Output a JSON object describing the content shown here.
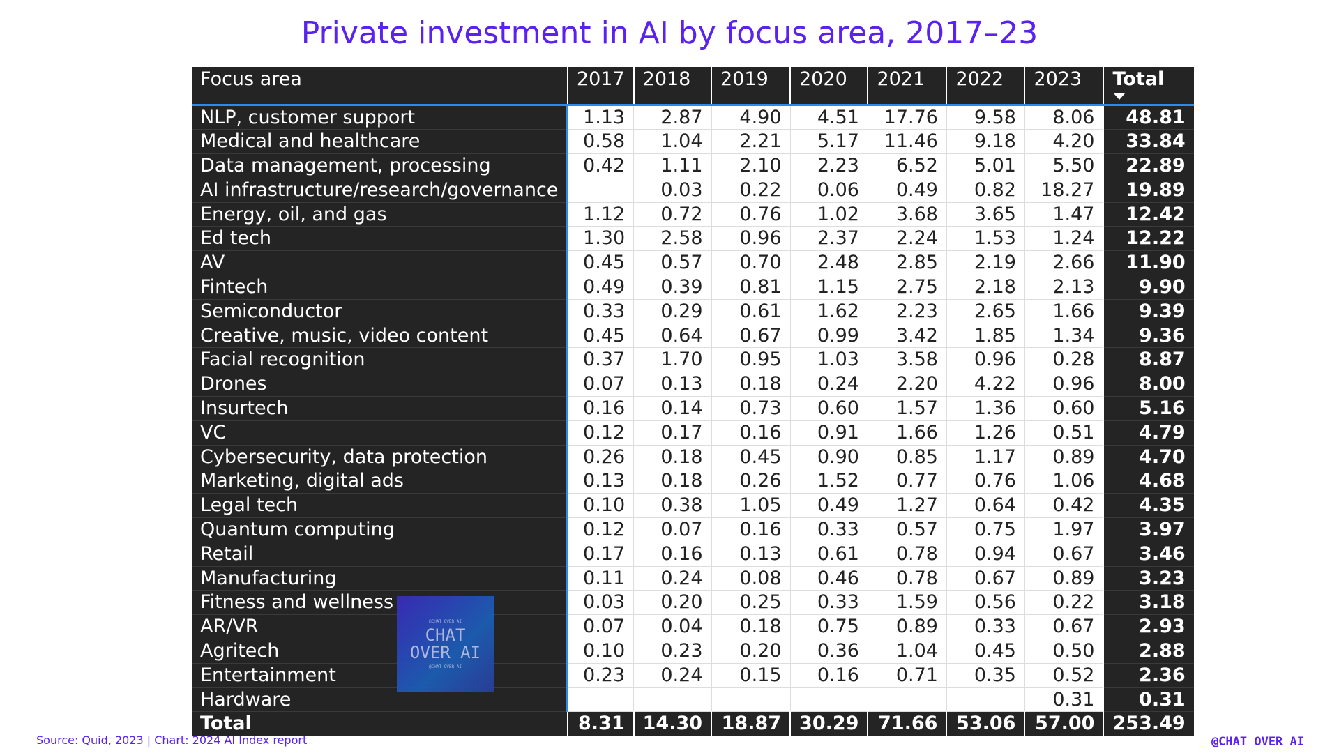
{
  "title": "Private investment in AI by focus area, 2017–23",
  "table": {
    "header": [
      "Focus area",
      "2017",
      "2018",
      "2019",
      "2020",
      "2021",
      "2022",
      "2023",
      "Total"
    ],
    "rows": [
      [
        "NLP, customer support",
        "1.13",
        "2.87",
        "4.90",
        "4.51",
        "17.76",
        "9.58",
        "8.06",
        "48.81"
      ],
      [
        "Medical and healthcare",
        "0.58",
        "1.04",
        "2.21",
        "5.17",
        "11.46",
        "9.18",
        "4.20",
        "33.84"
      ],
      [
        "Data management, processing",
        "0.42",
        "1.11",
        "2.10",
        "2.23",
        "6.52",
        "5.01",
        "5.50",
        "22.89"
      ],
      [
        "AI infrastructure/research/governance",
        null,
        "0.03",
        "0.22",
        "0.06",
        "0.49",
        "0.82",
        "18.27",
        "19.89"
      ],
      [
        "Energy, oil, and gas",
        "1.12",
        "0.72",
        "0.76",
        "1.02",
        "3.68",
        "3.65",
        "1.47",
        "12.42"
      ],
      [
        "Ed tech",
        "1.30",
        "2.58",
        "0.96",
        "2.37",
        "2.24",
        "1.53",
        "1.24",
        "12.22"
      ],
      [
        "AV",
        "0.45",
        "0.57",
        "0.70",
        "2.48",
        "2.85",
        "2.19",
        "2.66",
        "11.90"
      ],
      [
        "Fintech",
        "0.49",
        "0.39",
        "0.81",
        "1.15",
        "2.75",
        "2.18",
        "2.13",
        "9.90"
      ],
      [
        "Semiconductor",
        "0.33",
        "0.29",
        "0.61",
        "1.62",
        "2.23",
        "2.65",
        "1.66",
        "9.39"
      ],
      [
        "Creative, music, video content",
        "0.45",
        "0.64",
        "0.67",
        "0.99",
        "3.42",
        "1.85",
        "1.34",
        "9.36"
      ],
      [
        "Facial recognition",
        "0.37",
        "1.70",
        "0.95",
        "1.03",
        "3.58",
        "0.96",
        "0.28",
        "8.87"
      ],
      [
        "Drones",
        "0.07",
        "0.13",
        "0.18",
        "0.24",
        "2.20",
        "4.22",
        "0.96",
        "8.00"
      ],
      [
        "Insurtech",
        "0.16",
        "0.14",
        "0.73",
        "0.60",
        "1.57",
        "1.36",
        "0.60",
        "5.16"
      ],
      [
        "VC",
        "0.12",
        "0.17",
        "0.16",
        "0.91",
        "1.66",
        "1.26",
        "0.51",
        "4.79"
      ],
      [
        "Cybersecurity, data protection",
        "0.26",
        "0.18",
        "0.45",
        "0.90",
        "0.85",
        "1.17",
        "0.89",
        "4.70"
      ],
      [
        "Marketing, digital ads",
        "0.13",
        "0.18",
        "0.26",
        "1.52",
        "0.77",
        "0.76",
        "1.06",
        "4.68"
      ],
      [
        "Legal tech",
        "0.10",
        "0.38",
        "1.05",
        "0.49",
        "1.27",
        "0.64",
        "0.42",
        "4.35"
      ],
      [
        "Quantum computing",
        "0.12",
        "0.07",
        "0.16",
        "0.33",
        "0.57",
        "0.75",
        "1.97",
        "3.97"
      ],
      [
        "Retail",
        "0.17",
        "0.16",
        "0.13",
        "0.61",
        "0.78",
        "0.94",
        "0.67",
        "3.46"
      ],
      [
        "Manufacturing",
        "0.11",
        "0.24",
        "0.08",
        "0.46",
        "0.78",
        "0.67",
        "0.89",
        "3.23"
      ],
      [
        "Fitness and wellness",
        "0.03",
        "0.20",
        "0.25",
        "0.33",
        "1.59",
        "0.56",
        "0.22",
        "3.18"
      ],
      [
        "AR/VR",
        "0.07",
        "0.04",
        "0.18",
        "0.75",
        "0.89",
        "0.33",
        "0.67",
        "2.93"
      ],
      [
        "Agritech",
        "0.10",
        "0.23",
        "0.20",
        "0.36",
        "1.04",
        "0.45",
        "0.50",
        "2.88"
      ],
      [
        "Entertainment",
        "0.23",
        "0.24",
        "0.15",
        "0.16",
        "0.71",
        "0.35",
        "0.52",
        "2.36"
      ],
      [
        "Hardware",
        null,
        null,
        null,
        null,
        null,
        null,
        "0.31",
        "0.31"
      ]
    ],
    "total_row": [
      "Total",
      "8.31",
      "14.30",
      "18.87",
      "30.29",
      "71.66",
      "53.06",
      "57.00",
      "253.49"
    ]
  },
  "logo": {
    "top": "@CHAT OVER AI",
    "main": "CHAT OVER AI",
    "bottom": "@CHAT OVER AI"
  },
  "source": "Source: Quid, 2023 | Chart: 2024 AI Index report",
  "brand": "@CHAT OVER AI"
}
